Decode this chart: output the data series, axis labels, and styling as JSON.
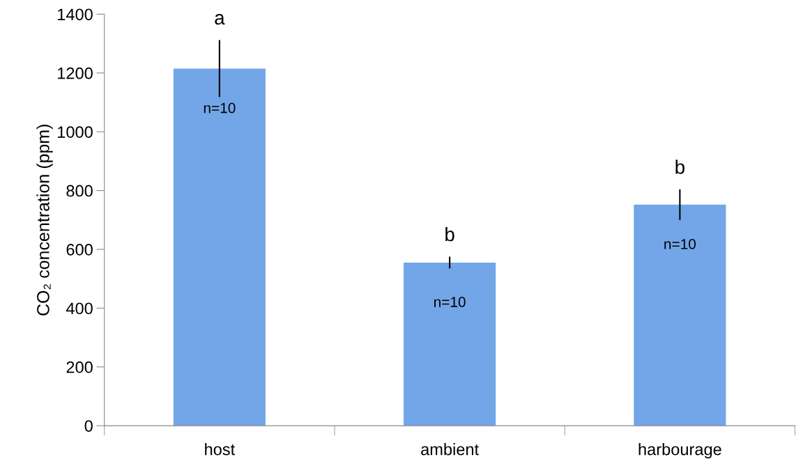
{
  "chart_data": {
    "type": "bar",
    "ylabel": "CO₂ concentration (ppm)",
    "categories": [
      "host",
      "ambient",
      "harbourage"
    ],
    "values": [
      1215,
      555,
      752
    ],
    "errors": [
      97,
      20,
      52
    ],
    "color": "#72a6e8",
    "ylim": [
      0,
      1400
    ],
    "yticks": [
      0,
      200,
      400,
      600,
      800,
      1000,
      1200,
      1400
    ],
    "grid": false,
    "legend": false,
    "annotations": [
      "a",
      "b",
      "b",
      "n=10",
      "n=10",
      "n=10"
    ]
  }
}
